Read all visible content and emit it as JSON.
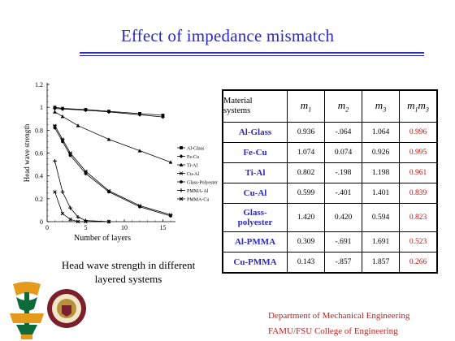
{
  "slide": {
    "title": "Effect of impedance mismatch",
    "caption_line1": "Head wave strength in different",
    "caption_line2": "layered systems",
    "footer_line1": "Department of Mechanical Engineering",
    "footer_line2": "FAMU/FSU College of Engineering"
  },
  "colors": {
    "title": "#2b2bbf",
    "material": "#2b2bbf",
    "product": "#d01010",
    "footer": "#c22020"
  },
  "table": {
    "header_material_line1": "Material",
    "header_material_line2": "systems",
    "header_m1": "m",
    "header_m1_sub": "1",
    "header_m2": "m",
    "header_m2_sub": "2",
    "header_m3": "m",
    "header_m3_sub": "3",
    "header_m1m3": "m",
    "header_m1m3_sub1": "1",
    "header_m1m3_mid": "m",
    "header_m1m3_sub2": "3",
    "rows": [
      {
        "material": "Al-Glass",
        "material_line2": "",
        "m1": "0.936",
        "m2": "-.064",
        "m3": "1.064",
        "m1m3": "0.996"
      },
      {
        "material": "Fe-Cu",
        "material_line2": "",
        "m1": "1.074",
        "m2": "0.074",
        "m3": "0.926",
        "m1m3": "0.995"
      },
      {
        "material": "Ti-Al",
        "material_line2": "",
        "m1": "0.802",
        "m2": "-.198",
        "m3": "1.198",
        "m1m3": "0.961"
      },
      {
        "material": "Cu-Al",
        "material_line2": "",
        "m1": "0.599",
        "m2": "-.401",
        "m3": "1.401",
        "m1m3": "0.839"
      },
      {
        "material": "Glass-",
        "material_line2": "polyester",
        "m1": "1.420",
        "m2": "0.420",
        "m3": "0.594",
        "m1m3": "0.823"
      },
      {
        "material": "Al-PMMA",
        "material_line2": "",
        "m1": "0.309",
        "m2": "-.691",
        "m3": "1.691",
        "m1m3": "0.523"
      },
      {
        "material": "Cu-PMMA",
        "material_line2": "",
        "m1": "0.143",
        "m2": "-.857",
        "m3": "1.857",
        "m1m3": "0.266"
      }
    ]
  },
  "chart_data": {
    "type": "line",
    "title": "",
    "xlabel": "Number of layers",
    "ylabel": "Head wave strength",
    "xlim": [
      0,
      16
    ],
    "ylim": [
      0,
      1.2
    ],
    "xticks": [
      0,
      5,
      10,
      15
    ],
    "yticks": [
      0,
      0.2,
      0.4,
      0.6,
      0.8,
      1,
      1.2
    ],
    "ytick_labels": [
      "0",
      "0.2",
      "0.4",
      "0.6",
      "0.8",
      "1",
      "1.2"
    ],
    "legend_position": "right",
    "series": [
      {
        "name": "Al-Glass",
        "marker": "square",
        "x": [
          1,
          2,
          5,
          8,
          12,
          15
        ],
        "y": [
          1.0,
          0.99,
          0.98,
          0.965,
          0.945,
          0.93
        ]
      },
      {
        "name": "Fe-Cu",
        "marker": "diamond",
        "x": [
          1,
          2,
          5,
          8,
          12,
          15
        ],
        "y": [
          0.99,
          0.985,
          0.975,
          0.96,
          0.935,
          0.915
        ]
      },
      {
        "name": "Ti-Al",
        "marker": "triangle",
        "x": [
          1,
          2,
          4,
          8,
          12,
          16
        ],
        "y": [
          0.96,
          0.92,
          0.84,
          0.72,
          0.62,
          0.52
        ]
      },
      {
        "name": "Cu-Al",
        "marker": "cross",
        "x": [
          1,
          2,
          3,
          5,
          8,
          12,
          16
        ],
        "y": [
          0.84,
          0.72,
          0.6,
          0.44,
          0.27,
          0.14,
          0.06
        ]
      },
      {
        "name": "Glass-Polyester",
        "marker": "circle",
        "x": [
          1,
          2,
          3,
          5,
          8,
          12,
          16
        ],
        "y": [
          0.82,
          0.7,
          0.58,
          0.42,
          0.26,
          0.13,
          0.05
        ]
      },
      {
        "name": "PMMA-Al",
        "marker": "plus",
        "x": [
          1,
          2,
          3,
          4,
          5,
          8
        ],
        "y": [
          0.53,
          0.26,
          0.12,
          0.04,
          0.01,
          0.0
        ]
      },
      {
        "name": "PMMA-Cu",
        "marker": "x",
        "x": [
          1,
          2,
          3,
          4,
          5,
          8
        ],
        "y": [
          0.26,
          0.07,
          0.02,
          0.0,
          0.0,
          0.0
        ]
      }
    ]
  }
}
